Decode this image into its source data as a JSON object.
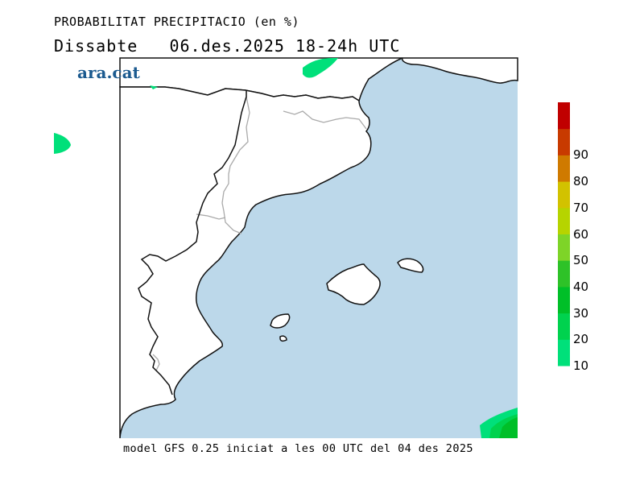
{
  "header": {
    "title": "PROBABILITAT PRECIPITACIO (en %)",
    "subtitle": "Dissabte   06.des.2025 18-24h UTC"
  },
  "logo": {
    "text": "ara.cat"
  },
  "footer": {
    "text": "model GFS 0.25 iniciat a les 00 UTC del 04 des 2025"
  },
  "map": {
    "sea_color": "#bcd8ea",
    "land_color": "#ffffff",
    "border_color": "#aaaaaa",
    "coast_color": "#111111",
    "precip_color": "#00e07a"
  },
  "colorbar": {
    "ticks": [
      "10",
      "20",
      "30",
      "40",
      "50",
      "60",
      "70",
      "80",
      "90"
    ],
    "colors": [
      "#00e07a",
      "#00d24e",
      "#00bf28",
      "#2ec228",
      "#7ed428",
      "#b6d400",
      "#d2c200",
      "#cf7a00",
      "#c83a00",
      "#c00000"
    ]
  }
}
